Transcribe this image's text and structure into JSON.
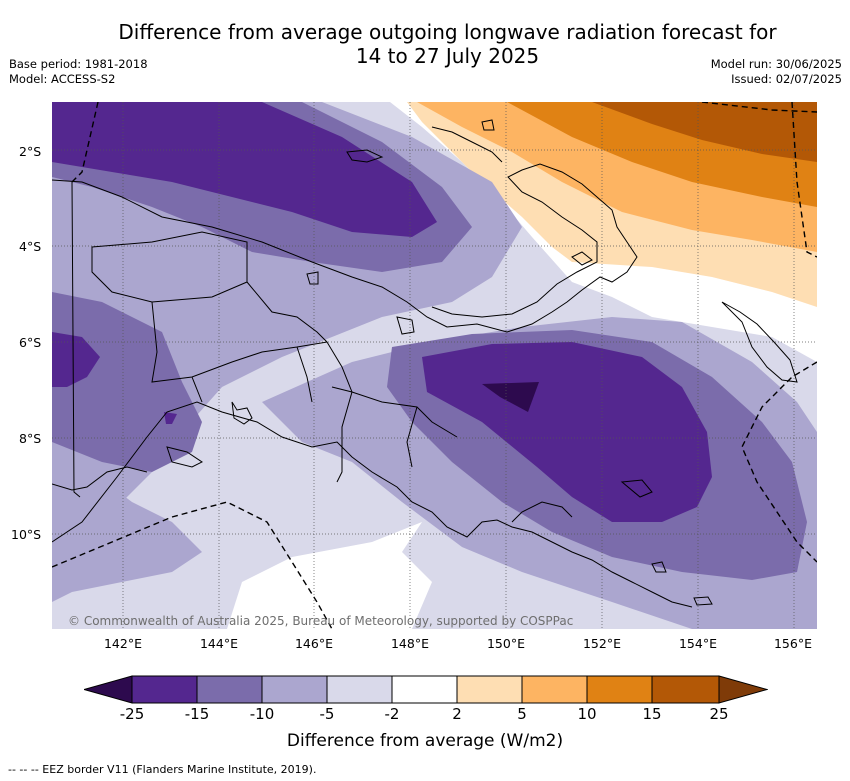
{
  "title": {
    "line1": "Difference from average outgoing longwave radiation forecast for",
    "line2": "14 to 27 July 2025"
  },
  "meta": {
    "base_period": "Base period: 1981-2018",
    "model": "Model: ACCESS-S2",
    "model_run": "Model run: 30/06/2025",
    "issued": "Issued: 02/07/2025"
  },
  "map": {
    "copyright": "© Commonwealth of Australia 2025, Bureau of Meteorology, supported by COSPPac",
    "lat_labels": [
      "2°S",
      "4°S",
      "6°S",
      "8°S",
      "10°S"
    ],
    "lon_labels": [
      "142°E",
      "144°E",
      "146°E",
      "148°E",
      "150°E",
      "152°E",
      "154°E",
      "156°E"
    ]
  },
  "colorbar": {
    "label": "Difference from average (W/m2)",
    "ticks": [
      "-25",
      "-15",
      "-10",
      "-5",
      "-2",
      "2",
      "5",
      "10",
      "15",
      "25"
    ],
    "colors": {
      "below_-25": "#2d0a4e",
      "-25_-15": "#54278f",
      "-15_-10": "#7b6cab",
      "-10_-5": "#aba6cf",
      "-5_-2": "#d9d9ea",
      "-2_2": "#ffffff",
      "2_5": "#fedeb3",
      "5_10": "#fdb462",
      "10_15": "#e08214",
      "15_25": "#b35806",
      "above_25": "#7f3b08"
    }
  },
  "footnote": "-- -- -- EEZ border V11 (Flanders Marine Institute, 2019)."
}
